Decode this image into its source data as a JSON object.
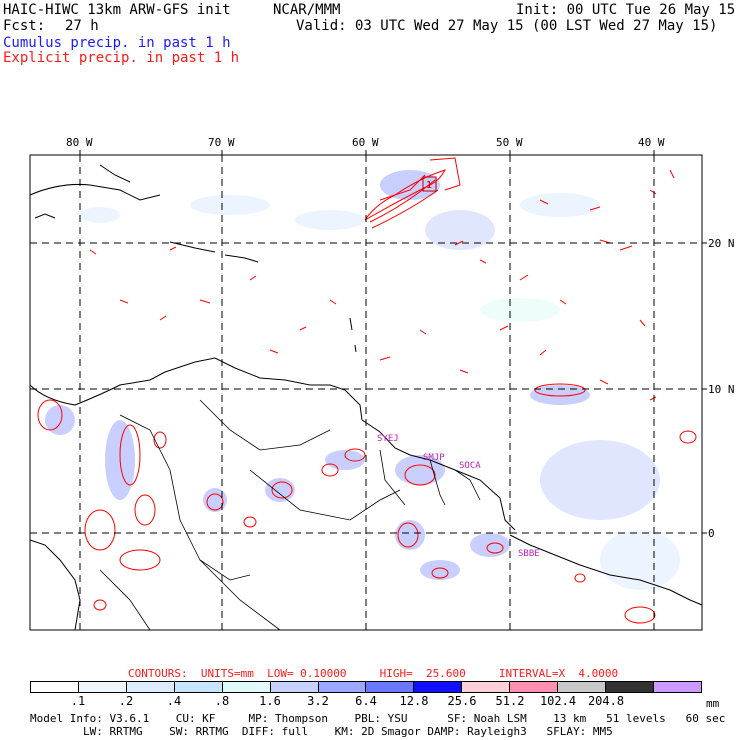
{
  "header": {
    "model_title": "HAIC-HIWC 13km ARW-GFS init",
    "org": "NCAR/MMM",
    "init": "Init: 00 UTC Tue 26 May 15",
    "fcst_label": "Fcst:",
    "fcst_value": "27 h",
    "valid": "Valid: 03 UTC Wed 27 May 15 (00 LST Wed 27 May 15)",
    "cumulus": "Cumulus precip. in past 1 h",
    "explicit": "Explicit precip. in past 1 h"
  },
  "map": {
    "lon_labels": [
      "80 W",
      "70 W",
      "60 W",
      "50 W",
      "40 W"
    ],
    "lat_labels": [
      "20 N",
      "10 N",
      "0"
    ],
    "stations": [
      "SYEJ",
      "SMJP",
      "SOCA",
      "SBBE"
    ],
    "box_label": "1",
    "colors": {
      "contour": "#ff0000",
      "coast": "#000000",
      "grid": "#000000"
    }
  },
  "contours_line": {
    "label": "CONTOURS:  UNITS=mm  LOW= 0.10000     HIGH=  25.600     INTERVAL=X  4.0000"
  },
  "colorbar": {
    "unit": "mm",
    "labels": [
      ".1",
      ".2",
      ".4",
      ".8",
      "1.6",
      "3.2",
      "6.4",
      "12.8",
      "25.6",
      "51.2",
      "102.4",
      "204.8"
    ],
    "colors": [
      "#ffffff",
      "#eef6ff",
      "#dcecff",
      "#c6e6ff",
      "#e0fafa",
      "#c8d2ff",
      "#9aa8ff",
      "#6a78ff",
      "#1010ff",
      "#ffd0d8",
      "#ff90b0",
      "#c8c8c8",
      "#323232",
      "#cc99ff"
    ]
  },
  "footer": {
    "line1": "Model Info: V3.6.1    CU: KF     MP: Thompson    PBL: YSU      SF: Noah LSM    13 km   51 levels   60 sec",
    "line2": "        LW: RRTMG    SW: RRTMG  DIFF: full    KM: 2D Smagor DAMP: Rayleigh3   SFLAY: MM5"
  }
}
